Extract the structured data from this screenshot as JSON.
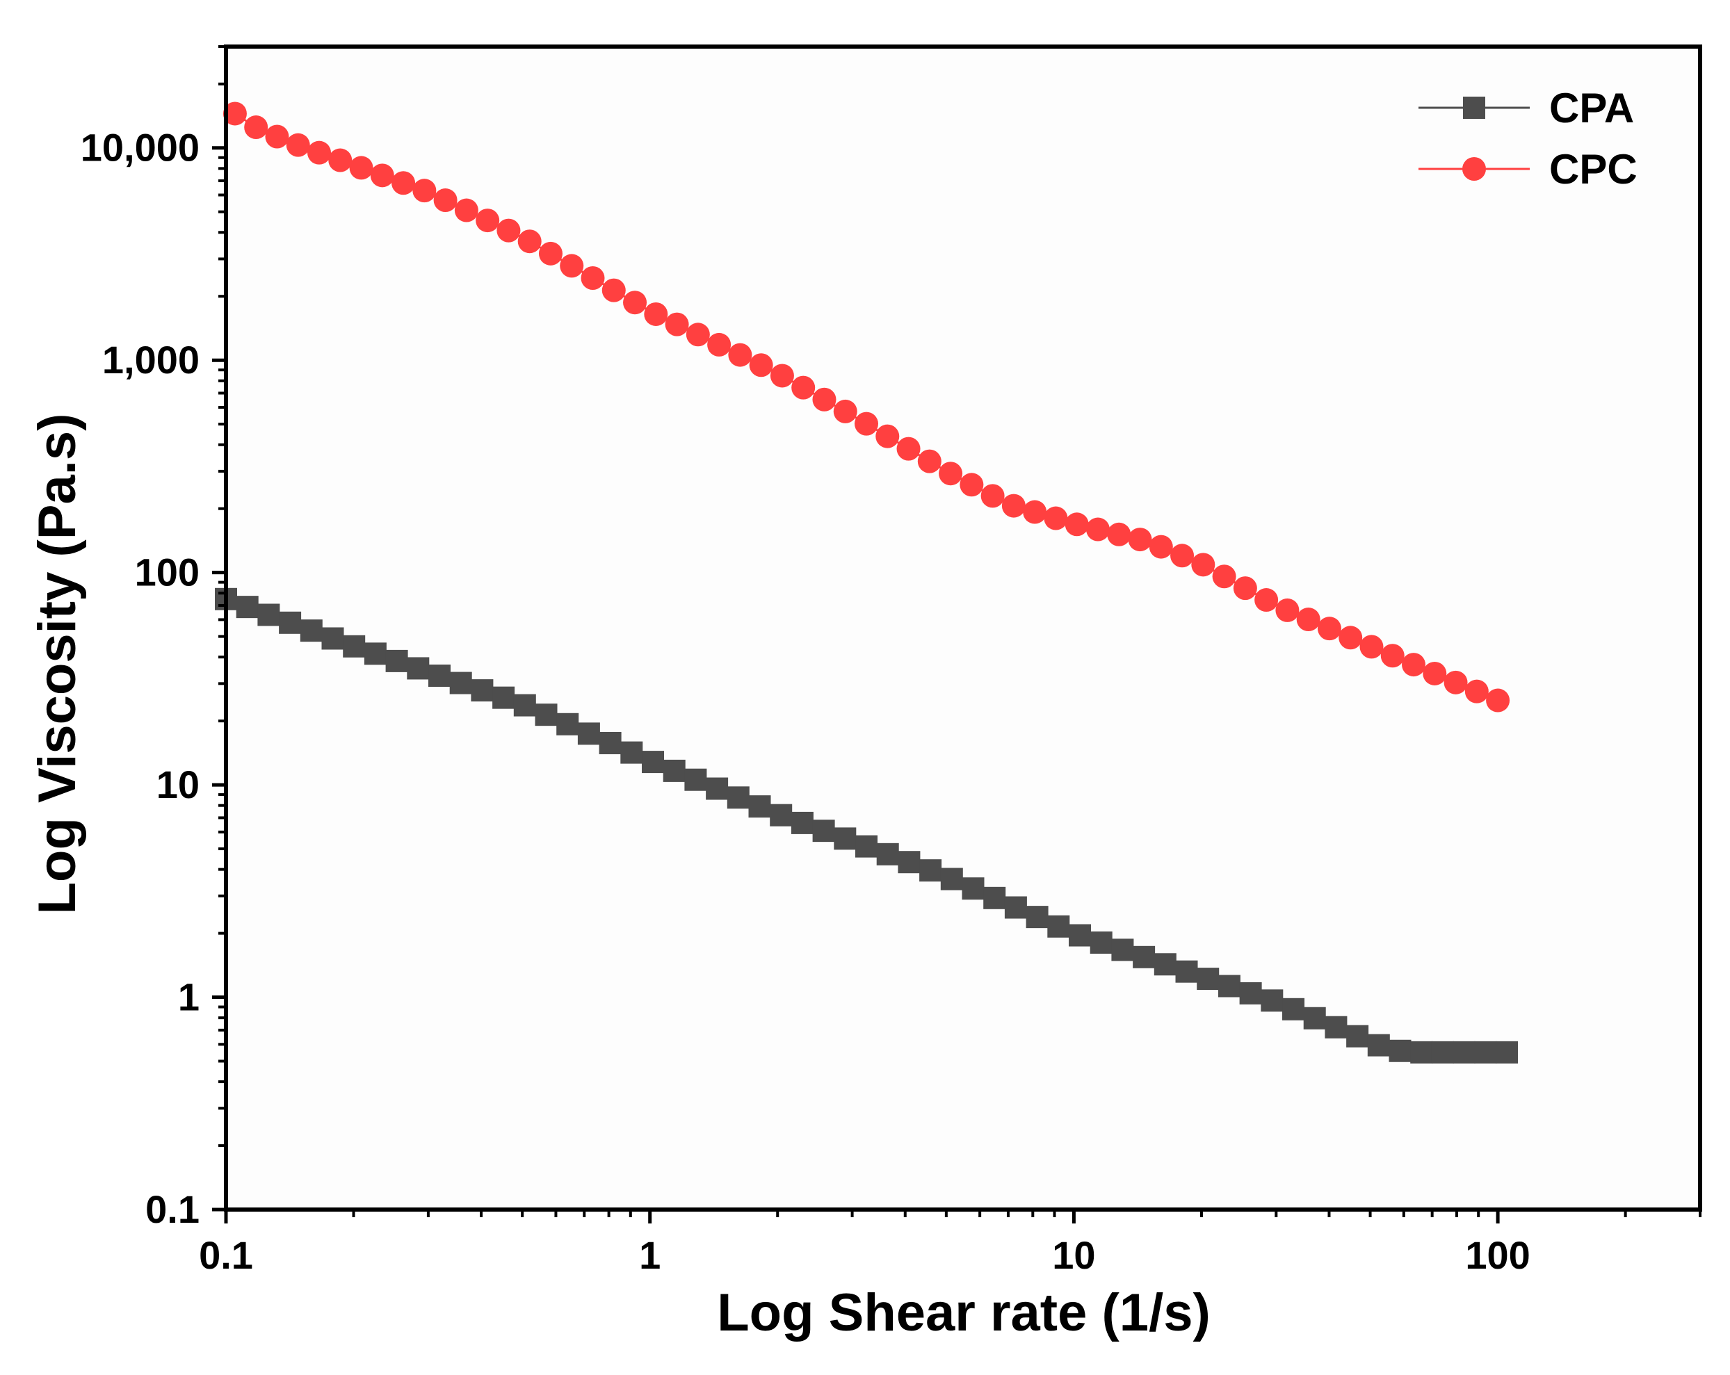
{
  "chart_data": {
    "type": "scatter",
    "title": "",
    "xlabel": "Log Shear rate (1/s)",
    "ylabel": "Log Viscosity (Pa.s)",
    "x_scale": "log",
    "y_scale": "log",
    "xlim": [
      0.1,
      300
    ],
    "ylim": [
      0.1,
      30000
    ],
    "x_ticks": [
      0.1,
      1,
      10,
      100
    ],
    "x_tick_labels": [
      "0.1",
      "1",
      "10",
      "100"
    ],
    "y_ticks": [
      0.1,
      1,
      10,
      100,
      1000,
      10000
    ],
    "y_tick_labels": [
      "0.1",
      "1",
      "10",
      "100",
      "1,000",
      "10,000"
    ],
    "grid": false,
    "legend_position": "top-right",
    "series": [
      {
        "name": "CPA",
        "marker": "square",
        "color": "#4d4d4d",
        "points_per_decade": 20,
        "anchors": [
          [
            0.1,
            75
          ],
          [
            0.2,
            45
          ],
          [
            0.5,
            24
          ],
          [
            1,
            13
          ],
          [
            2,
            7.3
          ],
          [
            4,
            4.4
          ],
          [
            5,
            3.7
          ],
          [
            10,
            2.0
          ],
          [
            20,
            1.25
          ],
          [
            30,
            0.95
          ],
          [
            55,
            0.57
          ],
          [
            62,
            0.55
          ],
          [
            105,
            0.55
          ]
        ]
      },
      {
        "name": "CPC",
        "marker": "circle",
        "color": "#ff4040",
        "points_per_decade": 20,
        "anchors": [
          [
            0.105,
            14500
          ],
          [
            0.12,
            12200
          ],
          [
            0.15,
            10200
          ],
          [
            0.2,
            8300
          ],
          [
            0.3,
            6200
          ],
          [
            0.5,
            3800
          ],
          [
            1,
            1700
          ],
          [
            2,
            870
          ],
          [
            3,
            550
          ],
          [
            5,
            300
          ],
          [
            7,
            210
          ],
          [
            10,
            170
          ],
          [
            15,
            140
          ],
          [
            20,
            110
          ],
          [
            30,
            70
          ],
          [
            50,
            45
          ],
          [
            100,
            25
          ]
        ]
      }
    ]
  }
}
